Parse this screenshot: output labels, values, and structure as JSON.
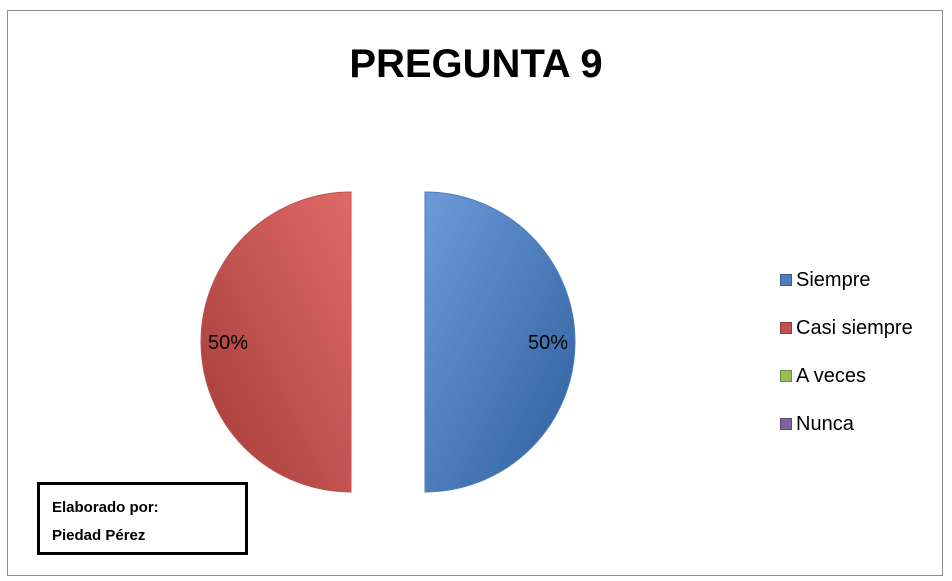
{
  "chart_data": {
    "type": "pie",
    "title": "PREGUNTA 9",
    "categories": [
      "Siempre",
      "Casi siempre",
      "A veces",
      "Nunca"
    ],
    "values": [
      50,
      50,
      0,
      0
    ],
    "value_labels": [
      "50%",
      "50%",
      "",
      ""
    ],
    "colors": [
      "#4a7ebf",
      "#c0504d",
      "#9bbb59",
      "#8064a2"
    ],
    "exploded": true,
    "legend_position": "right"
  },
  "credit": {
    "line1": "Elaborado por:",
    "line2": "Piedad Pérez"
  }
}
